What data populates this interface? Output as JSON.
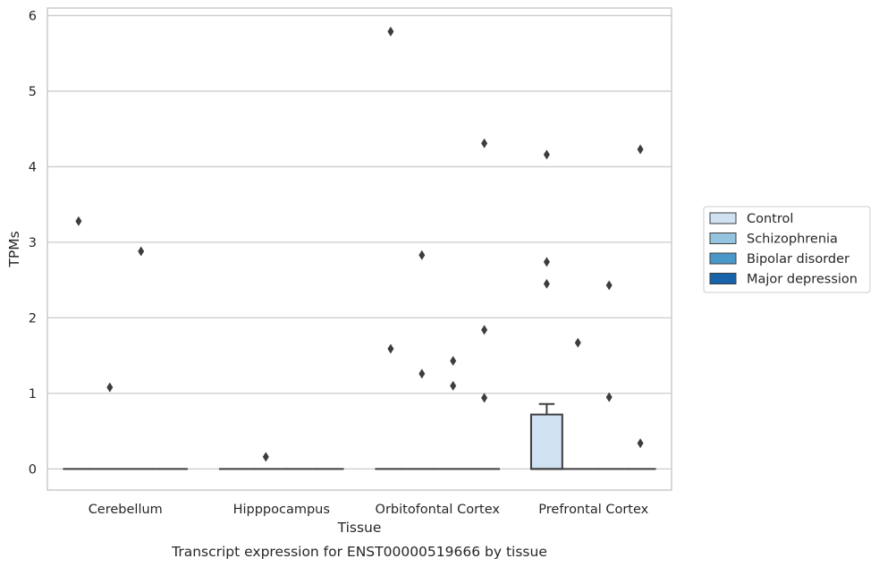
{
  "chart_data": {
    "type": "box",
    "caption": "Transcript expression for ENST00000519666 by tissue",
    "xlabel": "Tissue",
    "ylabel": "TPMs",
    "ylim": [
      -0.28,
      6.1
    ],
    "yticks": [
      0,
      1,
      2,
      3,
      4,
      5,
      6
    ],
    "grid": true,
    "legend_position": "right",
    "categories": [
      "Cerebellum",
      "Hipppocampus",
      "Orbitofontal Cortex",
      "Prefrontal Cortex"
    ],
    "series": [
      {
        "name": "Control",
        "color": "#d0e1f2"
      },
      {
        "name": "Schizophrenia",
        "color": "#94c4df"
      },
      {
        "name": "Bipolar disorder",
        "color": "#4a98c9"
      },
      {
        "name": "Major depression",
        "color": "#1764ab"
      }
    ],
    "boxes": [
      {
        "category": 0,
        "series": 0,
        "q1": 0,
        "median": 0,
        "q3": 0,
        "whisker_low": 0,
        "whisker_high": 0,
        "outliers": [
          3.28
        ]
      },
      {
        "category": 0,
        "series": 1,
        "q1": 0,
        "median": 0,
        "q3": 0,
        "whisker_low": 0,
        "whisker_high": 0,
        "outliers": [
          1.08
        ]
      },
      {
        "category": 0,
        "series": 2,
        "q1": 0,
        "median": 0,
        "q3": 0,
        "whisker_low": 0,
        "whisker_high": 0,
        "outliers": [
          2.88
        ]
      },
      {
        "category": 0,
        "series": 3,
        "q1": 0,
        "median": 0,
        "q3": 0,
        "whisker_low": 0,
        "whisker_high": 0,
        "outliers": []
      },
      {
        "category": 1,
        "series": 0,
        "q1": 0,
        "median": 0,
        "q3": 0,
        "whisker_low": 0,
        "whisker_high": 0,
        "outliers": []
      },
      {
        "category": 1,
        "series": 1,
        "q1": 0,
        "median": 0,
        "q3": 0,
        "whisker_low": 0,
        "whisker_high": 0,
        "outliers": [
          0.16
        ]
      },
      {
        "category": 1,
        "series": 2,
        "q1": 0,
        "median": 0,
        "q3": 0,
        "whisker_low": 0,
        "whisker_high": 0,
        "outliers": []
      },
      {
        "category": 1,
        "series": 3,
        "q1": 0,
        "median": 0,
        "q3": 0,
        "whisker_low": 0,
        "whisker_high": 0,
        "outliers": []
      },
      {
        "category": 2,
        "series": 0,
        "q1": 0,
        "median": 0,
        "q3": 0,
        "whisker_low": 0,
        "whisker_high": 0,
        "outliers": [
          5.79,
          1.59
        ]
      },
      {
        "category": 2,
        "series": 1,
        "q1": 0,
        "median": 0,
        "q3": 0,
        "whisker_low": 0,
        "whisker_high": 0,
        "outliers": [
          2.83,
          1.26
        ]
      },
      {
        "category": 2,
        "series": 2,
        "q1": 0,
        "median": 0,
        "q3": 0,
        "whisker_low": 0,
        "whisker_high": 0,
        "outliers": [
          1.43,
          1.1
        ]
      },
      {
        "category": 2,
        "series": 3,
        "q1": 0,
        "median": 0,
        "q3": 0,
        "whisker_low": 0,
        "whisker_high": 0,
        "outliers": [
          4.31,
          1.84,
          0.94
        ]
      },
      {
        "category": 3,
        "series": 0,
        "q1": 0,
        "median": 0,
        "q3": 0.72,
        "whisker_low": 0,
        "whisker_high": 0.86,
        "outliers": [
          4.16,
          2.74,
          2.45
        ]
      },
      {
        "category": 3,
        "series": 1,
        "q1": 0,
        "median": 0,
        "q3": 0,
        "whisker_low": 0,
        "whisker_high": 0,
        "outliers": [
          1.67
        ]
      },
      {
        "category": 3,
        "series": 2,
        "q1": 0,
        "median": 0,
        "q3": 0,
        "whisker_low": 0,
        "whisker_high": 0,
        "outliers": [
          2.43,
          0.95
        ]
      },
      {
        "category": 3,
        "series": 3,
        "q1": 0,
        "median": 0,
        "q3": 0,
        "whisker_low": 0,
        "whisker_high": 0,
        "outliers": [
          4.23,
          0.34
        ]
      }
    ]
  }
}
